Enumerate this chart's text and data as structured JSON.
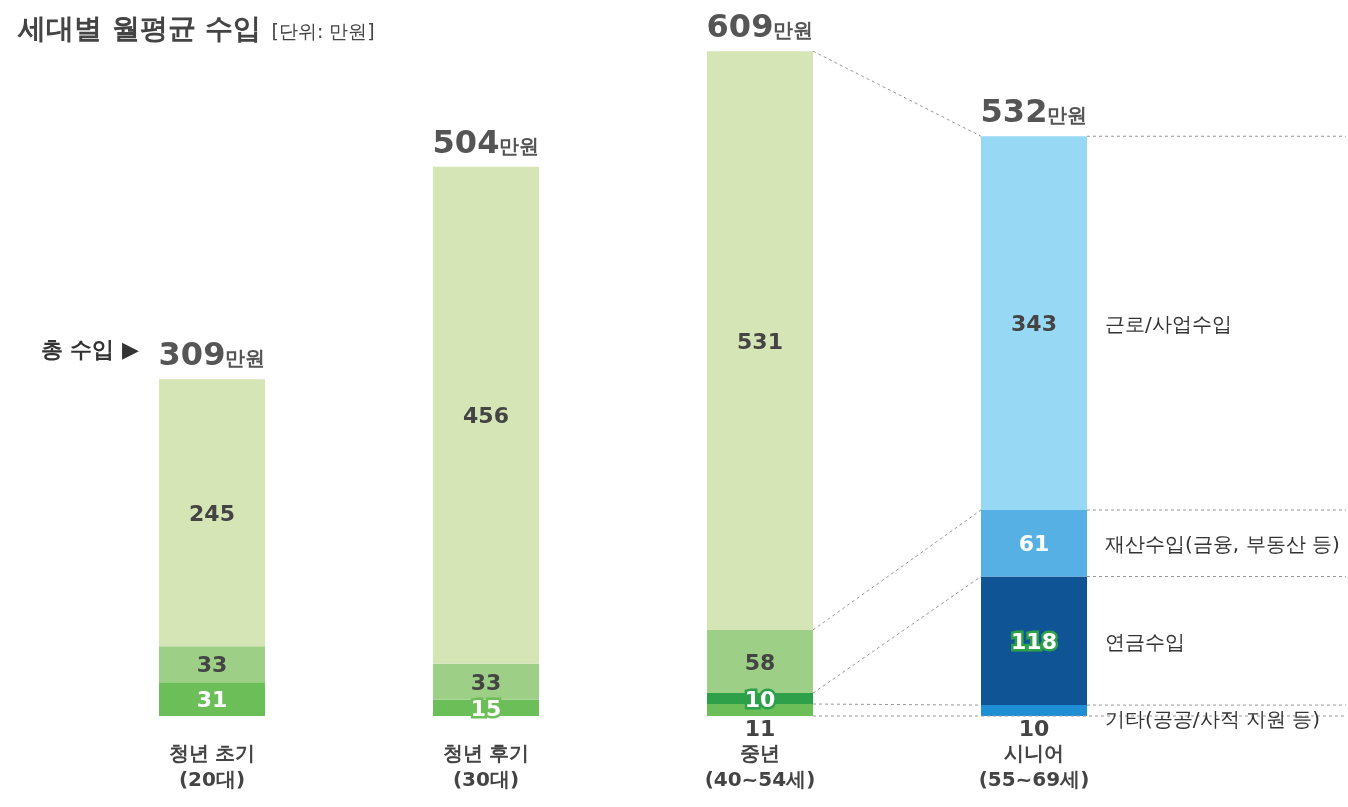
{
  "chart_data": {
    "type": "bar",
    "stacked": true,
    "title": "세대별 월평균 수입",
    "subtitle": "[단위: 만원]",
    "categories": [
      "청년 초기\n(20대)",
      "청년 후기\n(30대)",
      "중년\n(40~54세)",
      "시니어\n(55~69세)"
    ],
    "series": [
      {
        "name": "기타(공공/사적 지원 등)",
        "colors": [
          "#6cbf58",
          "#6cbf58",
          "#6cbf58",
          "#1e8fd4"
        ],
        "values": [
          31,
          15,
          11,
          10
        ]
      },
      {
        "name": "연금수입",
        "colors": [
          "#2ea04a",
          "#2ea04a",
          "#2ea04a",
          "#0f5596"
        ],
        "values": [
          null,
          null,
          10,
          118
        ]
      },
      {
        "name": "재산수입(금융, 부동산 등)",
        "colors": [
          "#9dcf87",
          "#9dcf87",
          "#9dcf87",
          "#56b0e3"
        ],
        "values": [
          33,
          33,
          58,
          61
        ]
      },
      {
        "name": "근로/사업수입",
        "colors": [
          "#d5e5b5",
          "#d5e5b5",
          "#d5e5b5",
          "#97d8f5"
        ],
        "values": [
          245,
          456,
          531,
          343
        ]
      }
    ],
    "totals": [
      "309만원",
      "504만원",
      "609만원",
      "532만원"
    ],
    "data_labels": true,
    "annotations": [
      "총 수입 ▶"
    ]
  }
}
